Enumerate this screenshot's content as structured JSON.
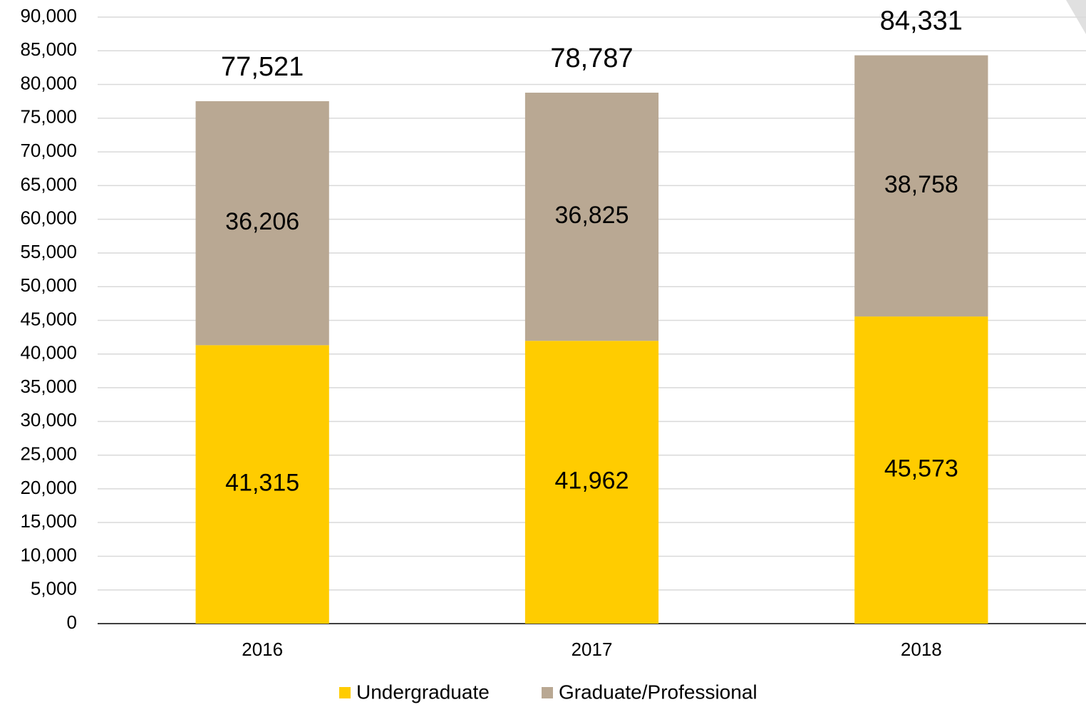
{
  "chart_data": {
    "type": "stacked_bar",
    "categories": [
      "2016",
      "2017",
      "2018"
    ],
    "series": [
      {
        "name": "Undergraduate",
        "color": "#ffcc00",
        "values": [
          41315,
          41962,
          45573
        ],
        "value_labels": [
          "41,315",
          "41,962",
          "45,573"
        ]
      },
      {
        "name": "Graduate/Professional",
        "color": "#b9a893",
        "values": [
          36206,
          36825,
          38758
        ],
        "value_labels": [
          "36,206",
          "36,825",
          "38,758"
        ]
      }
    ],
    "totals": {
      "values": [
        77521,
        78787,
        84331
      ],
      "value_labels": [
        "77,521",
        "78,787",
        "84,331"
      ]
    },
    "ylim": [
      0,
      90000
    ],
    "yticks": [
      0,
      {
        "value": 5000,
        "label": "5,000"
      },
      {
        "value": 10000,
        "label": "10,000"
      },
      {
        "value": 15000,
        "label": "15,000"
      },
      {
        "value": 20000,
        "label": "20,000"
      },
      {
        "value": 25000,
        "label": "25,000"
      },
      {
        "value": 30000,
        "label": "30,000"
      },
      {
        "value": 35000,
        "label": "35,000"
      },
      {
        "value": 40000,
        "label": "40,000"
      },
      {
        "value": 45000,
        "label": "45,000"
      },
      {
        "value": 50000,
        "label": "50,000"
      },
      {
        "value": 55000,
        "label": "55,000"
      },
      {
        "value": 60000,
        "label": "60,000"
      },
      {
        "value": 65000,
        "label": "65,000"
      },
      {
        "value": 70000,
        "label": "70,000"
      },
      {
        "value": 75000,
        "label": "75,000"
      },
      {
        "value": 80000,
        "label": "80,000"
      },
      {
        "value": 85000,
        "label": "85,000"
      },
      {
        "value": 90000,
        "label": "90,000"
      }
    ],
    "grid": true,
    "legend": "bottom"
  }
}
